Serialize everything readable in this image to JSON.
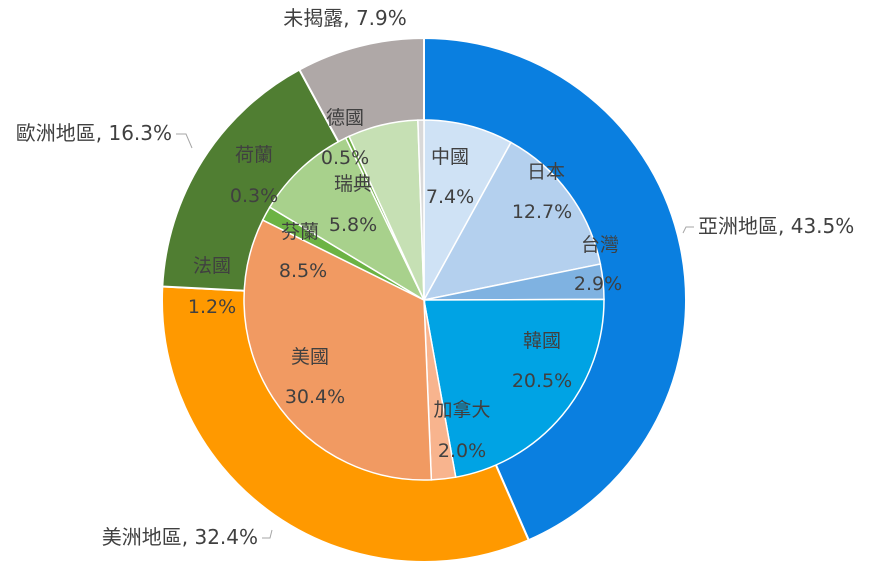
{
  "chart_data": {
    "type": "pie",
    "variant": "double-donut",
    "title": "",
    "outer": {
      "categories": [
        "亞洲地區",
        "美洲地區",
        "歐洲地區",
        "未揭露"
      ],
      "values": [
        43.5,
        32.4,
        16.3,
        7.9
      ],
      "labels": [
        "亞洲地區, 43.5%",
        "美洲地區, 32.4%",
        "歐洲地區, 16.3%",
        "未揭露, 7.9%"
      ],
      "colors": [
        "#0A7FE0",
        "#FF9900",
        "#507E32",
        "#AFA8A7"
      ]
    },
    "inner": {
      "categories": [
        "中國",
        "日本",
        "台灣",
        "韓國",
        "加拿大",
        "美國",
        "法國",
        "芬蘭",
        "荷蘭",
        "瑞典",
        "德國"
      ],
      "values": [
        7.4,
        12.7,
        2.9,
        20.5,
        2.0,
        30.4,
        1.2,
        8.5,
        0.3,
        5.8,
        0.5
      ],
      "value_labels": [
        "7.4%",
        "12.7%",
        "2.9%",
        "20.5%",
        "2.0%",
        "30.4%",
        "1.2%",
        "8.5%",
        "0.3%",
        "5.8%",
        "0.5%"
      ],
      "colors": [
        "#CFE2F5",
        "#B4D0EE",
        "#7FB2E1",
        "#00A3E4",
        "#F8B48E",
        "#F19A62",
        "#6CB344",
        "#A8D18C",
        "#70AD47",
        "#C6E0B4",
        "#D9D9D9"
      ]
    }
  }
}
